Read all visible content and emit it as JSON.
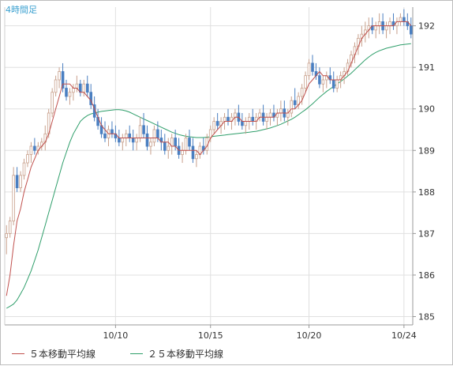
{
  "chart_data": {
    "type": "candlestick",
    "title": "4時間足",
    "y_ticks": [
      185,
      186,
      187,
      188,
      189,
      190,
      191,
      192
    ],
    "ylim": [
      184.8,
      192.45
    ],
    "x_ticks": [
      {
        "label": "10/10",
        "bar": 31
      },
      {
        "label": "10/15",
        "bar": 58
      },
      {
        "label": "10/20",
        "bar": 86
      },
      {
        "label": "10/24",
        "bar": 113
      }
    ],
    "candles": [
      [
        186.9,
        187.2,
        186.5,
        187.0
      ],
      [
        187.0,
        187.4,
        186.9,
        187.3
      ],
      [
        187.3,
        188.6,
        187.2,
        188.4
      ],
      [
        188.4,
        188.6,
        188.0,
        188.1
      ],
      [
        188.1,
        188.5,
        188.0,
        188.4
      ],
      [
        188.4,
        188.8,
        188.3,
        188.7
      ],
      [
        188.7,
        189.0,
        188.6,
        188.9
      ],
      [
        188.9,
        189.2,
        188.7,
        189.1
      ],
      [
        189.1,
        189.3,
        188.9,
        189.0
      ],
      [
        189.0,
        189.2,
        188.9,
        189.1
      ],
      [
        189.1,
        189.3,
        189.0,
        189.2
      ],
      [
        189.2,
        189.6,
        189.0,
        189.4
      ],
      [
        189.4,
        190.0,
        189.3,
        189.9
      ],
      [
        189.9,
        190.5,
        189.8,
        190.4
      ],
      [
        190.4,
        190.8,
        190.3,
        190.7
      ],
      [
        190.7,
        191.0,
        190.5,
        190.9
      ],
      [
        190.9,
        191.1,
        190.4,
        190.5
      ],
      [
        190.5,
        190.7,
        190.2,
        190.3
      ],
      [
        190.3,
        190.5,
        190.1,
        190.4
      ],
      [
        190.4,
        190.6,
        190.2,
        190.5
      ],
      [
        190.5,
        190.8,
        190.4,
        190.6
      ],
      [
        190.6,
        190.7,
        190.3,
        190.4
      ],
      [
        190.4,
        190.7,
        190.3,
        190.6
      ],
      [
        190.6,
        190.8,
        190.3,
        190.4
      ],
      [
        190.4,
        190.6,
        190.0,
        190.1
      ],
      [
        190.1,
        190.3,
        189.7,
        189.8
      ],
      [
        189.8,
        190.0,
        189.5,
        189.6
      ],
      [
        189.6,
        189.8,
        189.3,
        189.4
      ],
      [
        189.4,
        189.7,
        189.2,
        189.3
      ],
      [
        189.3,
        189.6,
        189.1,
        189.5
      ],
      [
        189.5,
        189.7,
        189.3,
        189.4
      ],
      [
        189.4,
        189.6,
        189.2,
        189.3
      ],
      [
        189.3,
        189.5,
        189.1,
        189.2
      ],
      [
        189.2,
        189.4,
        189.0,
        189.3
      ],
      [
        189.3,
        189.5,
        189.1,
        189.4
      ],
      [
        189.4,
        189.6,
        189.2,
        189.3
      ],
      [
        189.3,
        189.5,
        189.0,
        189.2
      ],
      [
        189.2,
        189.4,
        189.0,
        189.3
      ],
      [
        189.3,
        189.8,
        189.2,
        189.6
      ],
      [
        189.6,
        189.9,
        189.3,
        189.4
      ],
      [
        189.4,
        189.6,
        189.0,
        189.1
      ],
      [
        189.1,
        189.3,
        188.9,
        189.2
      ],
      [
        189.2,
        189.6,
        189.1,
        189.5
      ],
      [
        189.5,
        189.7,
        189.2,
        189.3
      ],
      [
        189.3,
        189.5,
        189.0,
        189.2
      ],
      [
        189.2,
        189.4,
        188.9,
        189.0
      ],
      [
        189.0,
        189.3,
        188.8,
        189.1
      ],
      [
        189.1,
        189.4,
        188.9,
        189.3
      ],
      [
        189.3,
        189.5,
        189.0,
        189.1
      ],
      [
        189.1,
        189.3,
        188.8,
        188.9
      ],
      [
        188.9,
        189.2,
        188.7,
        189.0
      ],
      [
        189.0,
        189.4,
        188.9,
        189.3
      ],
      [
        189.3,
        189.5,
        189.0,
        189.1
      ],
      [
        189.1,
        189.3,
        188.7,
        188.8
      ],
      [
        188.8,
        189.0,
        188.6,
        188.9
      ],
      [
        188.9,
        189.2,
        188.8,
        189.1
      ],
      [
        189.1,
        189.3,
        188.9,
        189.0
      ],
      [
        189.0,
        189.4,
        188.9,
        189.3
      ],
      [
        189.3,
        189.6,
        189.2,
        189.5
      ],
      [
        189.5,
        189.8,
        189.4,
        189.7
      ],
      [
        189.7,
        189.9,
        189.5,
        189.6
      ],
      [
        189.6,
        189.8,
        189.4,
        189.7
      ],
      [
        189.7,
        189.9,
        189.5,
        189.8
      ],
      [
        189.8,
        190.0,
        189.6,
        189.7
      ],
      [
        189.7,
        189.9,
        189.5,
        189.8
      ],
      [
        189.8,
        190.0,
        189.6,
        189.9
      ],
      [
        189.9,
        190.1,
        189.6,
        189.7
      ],
      [
        189.7,
        189.9,
        189.5,
        189.6
      ],
      [
        189.6,
        189.8,
        189.4,
        189.7
      ],
      [
        189.7,
        189.9,
        189.5,
        189.8
      ],
      [
        189.8,
        190.0,
        189.6,
        189.7
      ],
      [
        189.7,
        189.9,
        189.5,
        189.8
      ],
      [
        189.8,
        190.0,
        189.7,
        189.9
      ],
      [
        189.9,
        190.1,
        189.6,
        189.7
      ],
      [
        189.7,
        189.9,
        189.5,
        189.8
      ],
      [
        189.8,
        190.0,
        189.6,
        189.9
      ],
      [
        189.9,
        190.1,
        189.7,
        189.8
      ],
      [
        189.8,
        190.0,
        189.6,
        189.9
      ],
      [
        189.9,
        190.2,
        189.7,
        190.0
      ],
      [
        190.0,
        190.2,
        189.7,
        189.8
      ],
      [
        189.8,
        190.0,
        189.6,
        189.9
      ],
      [
        189.9,
        190.3,
        189.8,
        190.2
      ],
      [
        190.2,
        190.5,
        190.0,
        190.1
      ],
      [
        190.1,
        190.4,
        190.0,
        190.3
      ],
      [
        190.3,
        190.6,
        190.1,
        190.5
      ],
      [
        190.5,
        190.9,
        190.4,
        190.8
      ],
      [
        190.8,
        191.2,
        190.7,
        191.1
      ],
      [
        191.1,
        191.3,
        190.8,
        190.9
      ],
      [
        190.9,
        191.1,
        190.7,
        190.8
      ],
      [
        190.8,
        191.0,
        190.5,
        190.6
      ],
      [
        190.6,
        190.8,
        190.4,
        190.7
      ],
      [
        190.7,
        190.9,
        190.5,
        190.8
      ],
      [
        190.8,
        191.0,
        190.6,
        190.7
      ],
      [
        190.7,
        190.9,
        190.4,
        190.5
      ],
      [
        190.5,
        190.8,
        190.4,
        190.7
      ],
      [
        190.7,
        190.9,
        190.5,
        190.8
      ],
      [
        190.8,
        191.0,
        190.6,
        190.9
      ],
      [
        190.9,
        191.2,
        190.8,
        191.1
      ],
      [
        191.1,
        191.4,
        191.0,
        191.3
      ],
      [
        191.3,
        191.6,
        191.1,
        191.5
      ],
      [
        191.5,
        191.8,
        191.3,
        191.7
      ],
      [
        191.7,
        192.0,
        191.5,
        191.8
      ],
      [
        191.8,
        192.1,
        191.6,
        191.9
      ],
      [
        191.9,
        192.2,
        191.7,
        192.0
      ],
      [
        192.0,
        192.2,
        191.8,
        191.9
      ],
      [
        191.9,
        192.1,
        191.7,
        192.0
      ],
      [
        192.0,
        192.3,
        191.8,
        192.1
      ],
      [
        192.1,
        192.3,
        191.8,
        191.9
      ],
      [
        191.9,
        192.1,
        191.7,
        192.0
      ],
      [
        192.0,
        192.2,
        191.8,
        192.1
      ],
      [
        192.1,
        192.3,
        191.9,
        192.0
      ],
      [
        192.0,
        192.2,
        191.8,
        192.1
      ],
      [
        192.1,
        192.3,
        192.0,
        192.2
      ],
      [
        192.2,
        192.4,
        192.0,
        192.1
      ],
      [
        192.1,
        192.3,
        191.9,
        192.0
      ],
      [
        192.0,
        192.2,
        191.7,
        191.8
      ]
    ],
    "series": [
      {
        "name": "５本移動平均線",
        "color": "#c0504d",
        "start": 0,
        "values": [
          185.5,
          186.0,
          186.7,
          187.3,
          187.6,
          188.0,
          188.3,
          188.6,
          188.8,
          189.0,
          189.1,
          189.2,
          189.4,
          189.7,
          190.0,
          190.3,
          190.6,
          190.6,
          190.6,
          190.5,
          190.5,
          190.4,
          190.4,
          190.3,
          190.2,
          190.0,
          189.8,
          189.6,
          189.5,
          189.4,
          189.4,
          189.4,
          189.3,
          189.3,
          189.3,
          189.3,
          189.3,
          189.3,
          189.3,
          189.3,
          189.3,
          189.3,
          189.3,
          189.3,
          189.2,
          189.2,
          189.2,
          189.1,
          189.1,
          189.0,
          189.0,
          189.0,
          189.0,
          189.0,
          189.0,
          188.9,
          189.0,
          189.1,
          189.3,
          189.4,
          189.5,
          189.6,
          189.7,
          189.7,
          189.7,
          189.8,
          189.8,
          189.7,
          189.7,
          189.7,
          189.7,
          189.7,
          189.8,
          189.8,
          189.8,
          189.8,
          189.8,
          189.9,
          189.9,
          189.9,
          189.9,
          190.0,
          190.0,
          190.1,
          190.2,
          190.4,
          190.6,
          190.7,
          190.8,
          190.9,
          190.8,
          190.8,
          190.7,
          190.7,
          190.7,
          190.7,
          190.8,
          190.9,
          191.1,
          191.3,
          191.5,
          191.7,
          191.8,
          191.9,
          192.0,
          192.0,
          192.0,
          192.0,
          192.0,
          192.0,
          192.0,
          192.1,
          192.1,
          192.1,
          192.1,
          192.0
        ]
      },
      {
        "name": "２５本移動平均線",
        "color": "#2e9e6a",
        "start": 0,
        "values": [
          185.2,
          185.25,
          185.3,
          185.4,
          185.55,
          185.7,
          185.9,
          186.1,
          186.35,
          186.6,
          186.9,
          187.2,
          187.5,
          187.8,
          188.1,
          188.4,
          188.7,
          188.95,
          189.2,
          189.4,
          189.55,
          189.7,
          189.78,
          189.84,
          189.88,
          189.9,
          189.92,
          189.94,
          189.95,
          189.96,
          189.97,
          189.98,
          189.98,
          189.97,
          189.95,
          189.92,
          189.88,
          189.84,
          189.8,
          189.76,
          189.72,
          189.68,
          189.64,
          189.6,
          189.56,
          189.52,
          189.48,
          189.44,
          189.41,
          189.38,
          189.36,
          189.34,
          189.33,
          189.32,
          189.31,
          189.31,
          189.31,
          189.32,
          189.33,
          189.34,
          189.35,
          189.36,
          189.37,
          189.38,
          189.39,
          189.4,
          189.41,
          189.42,
          189.43,
          189.44,
          189.45,
          189.46,
          189.48,
          189.5,
          189.52,
          189.54,
          189.57,
          189.6,
          189.63,
          189.67,
          189.71,
          189.75,
          189.8,
          189.86,
          189.92,
          189.98,
          190.05,
          190.12,
          190.2,
          190.28,
          190.35,
          190.42,
          190.48,
          190.54,
          190.6,
          190.66,
          190.72,
          190.79,
          190.86,
          190.94,
          191.02,
          191.1,
          191.18,
          191.25,
          191.31,
          191.36,
          191.4,
          191.43,
          191.46,
          191.48,
          191.5,
          191.52,
          191.54,
          191.55,
          191.56,
          191.57
        ]
      }
    ]
  },
  "legend": {
    "ma5_label": "５本移動平均線",
    "ma25_label": "２５本移動平均線",
    "ma5_color": "#c0504d",
    "ma25_color": "#2e9e6a"
  },
  "colors": {
    "up_candle": "#ffffff",
    "down_candle": "#4a7fc1",
    "candle_outline": "#c8a08c",
    "grid": "#e0e0e0",
    "axis": "#999999"
  }
}
